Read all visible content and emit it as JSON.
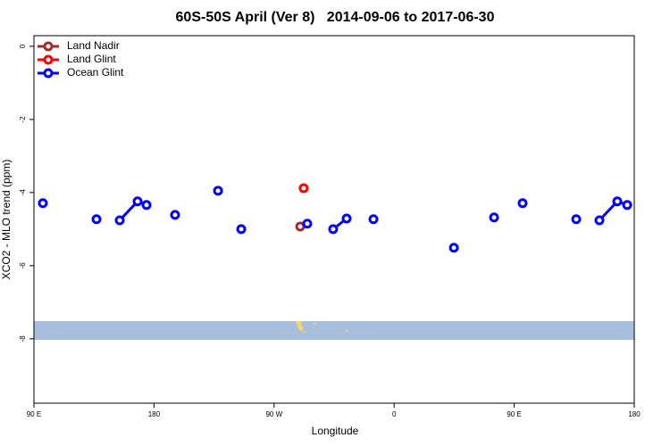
{
  "chart_data": {
    "type": "line",
    "title": "60S-50S April (Ver 8)   2014-09-06 to 2017-06-30",
    "x_label": "Longitude",
    "y_label": "XCO2 - MLO trend (ppm)",
    "xlim": [
      90,
      540
    ],
    "ylim": [
      -9.76,
      0.29
    ],
    "xticks": [
      {
        "value": 90,
        "label": "90 E"
      },
      180,
      {
        "value": 270,
        "label": "90 W"
      },
      {
        "value": 360,
        "label": "0"
      },
      {
        "value": 450,
        "label": "90 E"
      },
      {
        "value": 540,
        "label": "180"
      }
    ],
    "yticks": [
      0,
      -2,
      -4,
      -6,
      -8
    ],
    "legend": "top-left",
    "series": [
      {
        "name": "Land Nadir",
        "color": "#a52a2a",
        "x": [
          289.6
        ],
        "values": [
          -4.93
        ]
      },
      {
        "name": "Land Glint",
        "color": "#ff0000",
        "x": [
          292.2
        ],
        "values": [
          -3.88
        ]
      },
      {
        "name": "Ocean Glint",
        "color": "#0000ff",
        "x": [
          96.7,
          null,
          136.9,
          null,
          154.3,
          167.7,
          174.4,
          null,
          195.8,
          null,
          228,
          null,
          245.4,
          null,
          294.9,
          null,
          314.3,
          324.4,
          null,
          344.5,
          null,
          404.8,
          null,
          434.9,
          null,
          456.3,
          null,
          496.5,
          null,
          513.9,
          527.3,
          534.7
        ],
        "values": [
          -4.29,
          null,
          -4.73,
          null,
          -4.76,
          -4.24,
          -4.34,
          null,
          -4.61,
          null,
          -3.95,
          null,
          -5.0,
          null,
          -4.85,
          null,
          -5.0,
          -4.71,
          null,
          -4.73,
          null,
          -5.51,
          null,
          -4.68,
          null,
          -4.29,
          null,
          -4.73,
          null,
          -4.76,
          -4.24,
          -4.34
        ]
      }
    ]
  }
}
